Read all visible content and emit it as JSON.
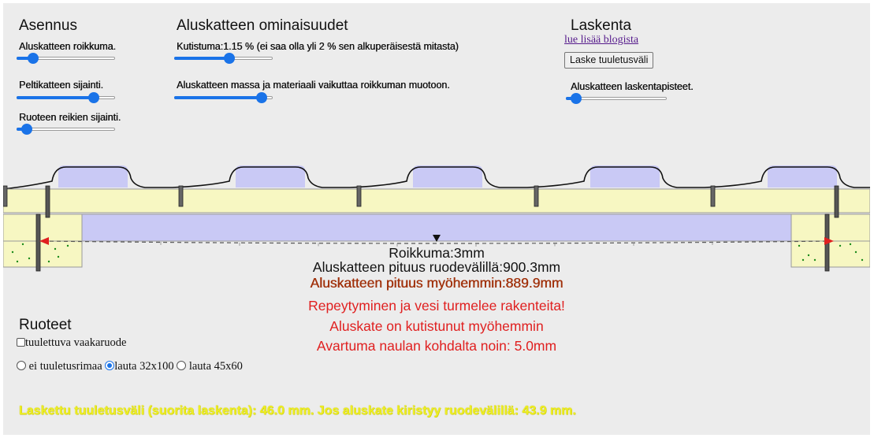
{
  "asennus": {
    "title": "Asennus",
    "sliders": [
      {
        "label": "Aluskatteen roikkuma.",
        "value": 0.13
      },
      {
        "label": "Peltikatteen sijainti.",
        "value": 0.82
      },
      {
        "label": "Ruoteen reikien sijainti.",
        "value": 0.05
      }
    ]
  },
  "ominaisuudet": {
    "title": "Aluskatteen ominaisuudet",
    "sliders": [
      {
        "label": "Kutistuma:1.15 % (ei saa olla yli 2 % sen alkuperäisestä mitasta)",
        "value": 0.57
      },
      {
        "label": "Aluskatteen massa ja materiaali vaikuttaa roikkuman muotoon.",
        "value": 0.94
      }
    ]
  },
  "laskenta": {
    "title": "Laskenta",
    "blog_link": "lue lisää blogista",
    "button": "Laske tuuletusväli",
    "slider": {
      "label": "Aluskatteen laskentapisteet.",
      "value": 0.05
    }
  },
  "results": {
    "roikkuma": "Roikkuma:3mm",
    "pituus": "Aluskatteen pituus ruodevälillä:900.3mm",
    "pituus_myohemmin": "Aluskatteen pituus myöhemmin:889.9mm",
    "warning1": "Repeytyminen ja vesi turmelee rakenteita!",
    "warning2": "Aluskate on kutistunut myöhemmin",
    "warning3": "Avartuma naulan kohdalta noin: 5.0mm"
  },
  "ruoteet": {
    "title": "Ruoteet",
    "checkbox_label": "tuulettuva vaakaruode",
    "checkbox_checked": false,
    "options": [
      {
        "label": "ei tuuletusrimaa",
        "selected": false
      },
      {
        "label": "lauta 32x100",
        "selected": true
      },
      {
        "label": "lauta 45x60",
        "selected": false
      }
    ]
  },
  "bottom_text": "Laskettu tuuletusväli (suorita laskenta): 46.0 mm. Jos aluskate kiristyy ruodevälillä: 43.9 mm.",
  "colors": {
    "accent": "#1a73e8",
    "batten": "#f7f7c2",
    "membrane_fill": "#c9c9f5",
    "warning": "#e02020",
    "later_length": "#a0300a",
    "bottom_text": "#eeee22"
  }
}
